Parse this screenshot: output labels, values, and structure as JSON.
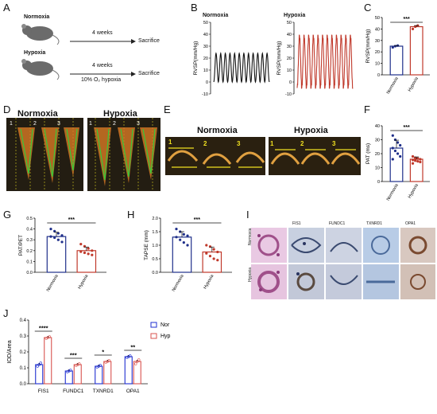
{
  "panels": {
    "A": "A",
    "B": "B",
    "C": "C",
    "D": "D",
    "E": "E",
    "F": "F",
    "G": "G",
    "H": "H",
    "I": "I",
    "J": "J"
  },
  "panel_a": {
    "normoxia": "Normoxia",
    "hypoxia": "Hypoxia",
    "weeks_top": "4 weeks",
    "weeks_bottom": "4 weeks",
    "hypoxia_condition": "10% O₂ hypoxia",
    "sacrifice_top": "Sacrifice",
    "sacrifice_bottom": "Sacrifice"
  },
  "panel_b": {
    "normoxia": "Normoxia",
    "hypoxia": "Hypoxia",
    "ylabel": "RVSP(mm/Hg)",
    "yticks": [
      "50",
      "40",
      "30",
      "20",
      "10",
      "0",
      "-10"
    ],
    "normoxia_color": "#111111",
    "hypoxia_color": "#c0392b"
  },
  "panel_d": {
    "normoxia": "Normoxia",
    "hypoxia": "Hypoxia",
    "cycle_labels": [
      "1",
      "2",
      "3",
      "1",
      "2",
      "3"
    ]
  },
  "panel_e": {
    "normoxia": "Normoxia",
    "hypoxia": "Hypoxia",
    "cycle_labels": [
      "1",
      "2",
      "3",
      "1",
      "2",
      "3"
    ]
  },
  "panel_i": {
    "stains": [
      "FIS1",
      "FUNDC1",
      "TXNRD1",
      "OPA1"
    ],
    "rows": [
      "Normoxia",
      "Hypoxia"
    ]
  },
  "chart_data": [
    {
      "panel": "C",
      "type": "bar",
      "categories": [
        "Normoxia",
        "Hypoxia"
      ],
      "values": [
        25,
        42
      ],
      "points": [
        [
          24,
          25,
          25.5
        ],
        [
          40,
          42,
          43
        ]
      ],
      "ylabel": "RVSP(mm/Hg)",
      "yticks": [
        "0",
        "10",
        "20",
        "30",
        "40",
        "50"
      ],
      "ylim": [
        0,
        50
      ],
      "significance": "***",
      "colors": [
        "#1f2f8a",
        "#c0392b"
      ]
    },
    {
      "panel": "F",
      "type": "bar",
      "categories": [
        "Normoxia",
        "Hypoxia"
      ],
      "values": [
        24,
        16
      ],
      "points": [
        [
          33,
          30,
          28,
          26,
          24,
          22,
          20,
          18,
          16
        ],
        [
          18,
          17,
          16.5,
          16,
          15.5,
          15,
          14.5,
          14,
          13
        ]
      ],
      "ylabel": "PAT (ms)",
      "yticks": [
        "0",
        "10",
        "20",
        "30",
        "40"
      ],
      "ylim": [
        0,
        40
      ],
      "significance": "***",
      "colors": [
        "#1f2f8a",
        "#c0392b"
      ]
    },
    {
      "panel": "G",
      "type": "bar",
      "categories": [
        "Normoxia",
        "Hypoxia"
      ],
      "values": [
        0.33,
        0.2
      ],
      "points": [
        [
          0.4,
          0.38,
          0.36,
          0.34,
          0.33,
          0.32,
          0.3,
          0.28
        ],
        [
          0.26,
          0.24,
          0.22,
          0.2,
          0.19,
          0.18,
          0.17,
          0.16
        ]
      ],
      "ylabel": "PAT/PET",
      "yticks": [
        "0.0",
        "0.1",
        "0.2",
        "0.3",
        "0.4",
        "0.5"
      ],
      "ylim": [
        0,
        0.5
      ],
      "significance": "***",
      "colors": [
        "#1f2f8a",
        "#c0392b"
      ]
    },
    {
      "panel": "H",
      "type": "bar",
      "categories": [
        "Normoxia",
        "Hypoxia"
      ],
      "values": [
        1.3,
        0.75
      ],
      "points": [
        [
          1.6,
          1.5,
          1.4,
          1.35,
          1.3,
          1.2,
          1.1,
          1.0
        ],
        [
          1.0,
          0.95,
          0.85,
          0.75,
          0.7,
          0.6,
          0.5,
          0.45
        ]
      ],
      "ylabel": "TAPSE (mm)",
      "yticks": [
        "0.0",
        "0.5",
        "1.0",
        "1.5",
        "2.0"
      ],
      "ylim": [
        0,
        2.0
      ],
      "significance": "***",
      "colors": [
        "#1f2f8a",
        "#c0392b"
      ]
    },
    {
      "panel": "J",
      "type": "bar",
      "categories": [
        "FIS1",
        "FUNDC1",
        "TXNRD1",
        "OPA1"
      ],
      "series": [
        {
          "name": "Nor",
          "values": [
            0.12,
            0.08,
            0.11,
            0.17
          ],
          "points": [
            [
              0.11,
              0.12,
              0.13
            ],
            [
              0.075,
              0.08,
              0.085
            ],
            [
              0.105,
              0.11,
              0.115
            ],
            [
              0.165,
              0.17,
              0.175
            ]
          ]
        },
        {
          "name": "Hyp",
          "values": [
            0.29,
            0.12,
            0.14,
            0.14
          ],
          "points": [
            [
              0.285,
              0.29,
              0.295
            ],
            [
              0.115,
              0.12,
              0.125
            ],
            [
              0.135,
              0.14,
              0.145
            ],
            [
              0.125,
              0.14,
              0.15
            ]
          ]
        }
      ],
      "ylabel": "IOD/Area",
      "yticks": [
        "0.0",
        "0.1",
        "0.2",
        "0.3",
        "0.4"
      ],
      "ylim": [
        0,
        0.4
      ],
      "significance": [
        "****",
        "***",
        "*",
        "**"
      ],
      "legend": "top-right",
      "colors": [
        "#1f2fd0",
        "#d9534f"
      ]
    }
  ]
}
